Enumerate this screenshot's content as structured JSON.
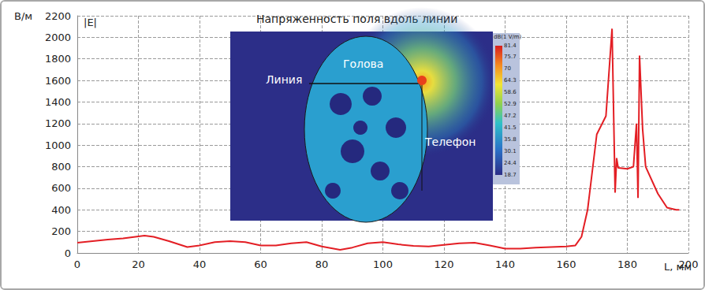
{
  "chart_data": {
    "type": "line",
    "title": "Напряженность поля вдоль линии",
    "x_label": "L, мм",
    "y_label": "В/м",
    "xlim": [
      0,
      200
    ],
    "ylim": [
      0,
      2200
    ],
    "xticks": [
      0,
      20,
      40,
      60,
      80,
      100,
      120,
      140,
      160,
      180,
      200
    ],
    "yticks": [
      0,
      200,
      400,
      600,
      800,
      1000,
      1200,
      1400,
      1600,
      1800,
      2000,
      2200
    ],
    "grid": true,
    "x": [
      0,
      5,
      10,
      15,
      22,
      25,
      30,
      36,
      40,
      45,
      50,
      55,
      60,
      65,
      70,
      75,
      80,
      86,
      90,
      95,
      100,
      105,
      110,
      115,
      120,
      125,
      130,
      135,
      140,
      145,
      150,
      155,
      160,
      163,
      165,
      167,
      170,
      173,
      175,
      176,
      176.5,
      177,
      180,
      182,
      183,
      183.5,
      184,
      185,
      186,
      190,
      193,
      196,
      197
    ],
    "series": [
      {
        "name": "|E|",
        "color": "#e31e24",
        "line_style": "solid",
        "values": [
          95,
          110,
          125,
          135,
          160,
          150,
          110,
          55,
          70,
          100,
          110,
          100,
          70,
          70,
          90,
          100,
          60,
          30,
          50,
          90,
          100,
          80,
          65,
          60,
          75,
          90,
          95,
          70,
          40,
          40,
          50,
          55,
          60,
          70,
          150,
          400,
          1100,
          1270,
          2080,
          560,
          880,
          790,
          780,
          800,
          1200,
          510,
          1830,
          1150,
          800,
          550,
          420,
          400,
          400
        ]
      }
    ],
    "inset": {
      "labels": [
        "Голова",
        "Линия",
        "Телефон"
      ],
      "colorbar": {
        "label": "dB(1 V/m)",
        "range": [
          18.7,
          81.4
        ],
        "ticks": [
          81.4,
          75.7,
          70,
          64.3,
          58.6,
          52.9,
          47.2,
          41.5,
          35.8,
          30.1,
          24.4,
          18.7
        ]
      }
    }
  }
}
